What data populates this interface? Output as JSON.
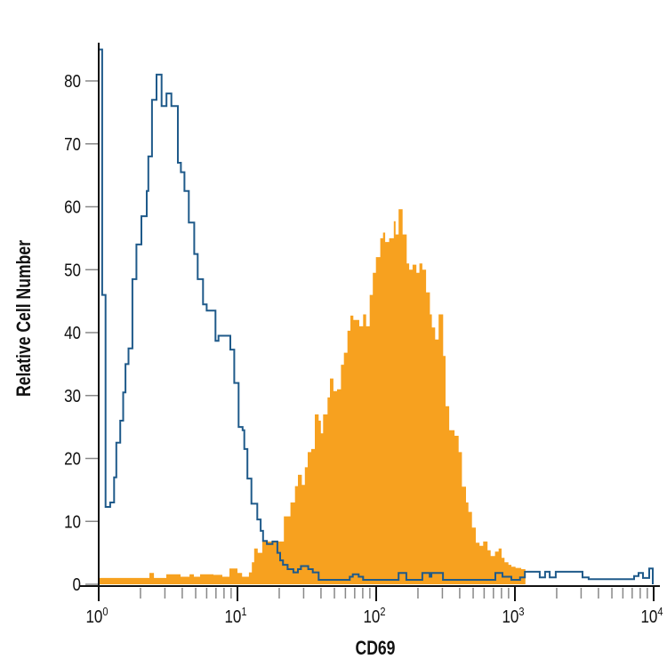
{
  "chart_data": {
    "type": "bar",
    "xlabel": "CD69",
    "ylabel": "Relative Cell Number",
    "x_scale": "log",
    "xlim": [
      1,
      10000
    ],
    "ylim": [
      0,
      85
    ],
    "grid": false,
    "y_ticks": [
      "0",
      "10",
      "20",
      "30",
      "40",
      "50",
      "60",
      "70",
      "80"
    ],
    "x_ticks": [
      {
        "base": "10",
        "exp": "0"
      },
      {
        "base": "10",
        "exp": "1"
      },
      {
        "base": "10",
        "exp": "2"
      },
      {
        "base": "10",
        "exp": "3"
      },
      {
        "base": "10",
        "exp": "4"
      }
    ],
    "series": [
      {
        "style": "filled",
        "color": "#F7A11F",
        "bin_left_edges": [
          1.0,
          2.32,
          2.5,
          3.07,
          3.89,
          4.51,
          4.85,
          5.38,
          6.71,
          7.78,
          8.75,
          10.0,
          10.8,
          12.1,
          12.7,
          13.2,
          14.0,
          15.1,
          21.6,
          24.1,
          26.0,
          27.3,
          29.1,
          30.6,
          32.1,
          34.0,
          36.1,
          38.5,
          39.9,
          41.4,
          44.6,
          46.4,
          49.2,
          52.2,
          55.7,
          58.5,
          62.1,
          65.2,
          68.4,
          75.5,
          80.5,
          84.7,
          89.8,
          94.6,
          99.5,
          107,
          112,
          116,
          124,
          134,
          138,
          145,
          155,
          166,
          173,
          183,
          195,
          205,
          215,
          229,
          244,
          252,
          266,
          282,
          304,
          316,
          336,
          367,
          393,
          415,
          444,
          462,
          490,
          522,
          556,
          590,
          635,
          668,
          719,
          763,
          801,
          841,
          898,
          943,
          1010,
          1110
        ],
        "values": [
          1.0,
          1.8,
          1.0,
          1.6,
          1.2,
          1.6,
          1.2,
          1.6,
          1.5,
          1.2,
          2.5,
          1.8,
          1.2,
          1.9,
          3.5,
          5.7,
          5.0,
          6.8,
          10.8,
          13,
          15.6,
          17.4,
          15.8,
          18.6,
          21,
          21.5,
          27,
          26,
          24,
          27,
          29.7,
          32.7,
          30.7,
          31,
          34.9,
          36.8,
          40.3,
          42.7,
          42,
          41,
          42.9,
          41,
          46,
          49.5,
          52,
          55,
          55.9,
          54.4,
          55,
          57.7,
          55.6,
          59.6,
          55.6,
          51,
          50,
          50.8,
          49.5,
          51,
          50,
          46.4,
          42.9,
          40.8,
          38.9,
          42.9,
          36.3,
          28.3,
          24.5,
          23.6,
          21,
          15.5,
          13,
          11.5,
          9,
          6.6,
          6.1,
          6.8,
          5.4,
          4.5,
          5.2,
          5.7,
          4.2,
          3.5,
          3.1,
          2.8,
          2.6,
          2.4
        ],
        "x_end": 1190
      },
      {
        "style": "outline",
        "color": "#1F5A8A",
        "bin_left_edges": [
          1.0,
          1.06,
          1.12,
          1.21,
          1.29,
          1.34,
          1.43,
          1.5,
          1.56,
          1.64,
          1.75,
          1.87,
          2.03,
          2.22,
          2.28,
          2.42,
          2.61,
          2.84,
          3.08,
          3.34,
          3.72,
          3.91,
          4.15,
          4.46,
          4.88,
          5.17,
          5.65,
          6.0,
          6.95,
          7.3,
          8.89,
          9.48,
          10.2,
          10.9,
          11.2,
          11.8,
          12.6,
          13.9,
          14.7,
          15.3,
          16.3,
          17.9,
          19.4,
          20.3,
          21.3,
          23.0,
          25.3,
          27.3,
          28.7,
          32.4,
          34.9,
          38.5,
          64.5,
          67.8,
          74.8,
          80.5,
          145,
          165,
          215,
          243,
          250,
          303,
          723,
          813,
          943,
          1090,
          1180,
          1510,
          1650,
          1780,
          1970,
          3070,
          3400,
          7230,
          7780,
          8380,
          9290
        ],
        "values": [
          85,
          46,
          12.3,
          13,
          17,
          22.5,
          26,
          30.5,
          35,
          37.5,
          48.5,
          54,
          58.5,
          62.5,
          68,
          77,
          81,
          76,
          78,
          76,
          67,
          65.5,
          62.5,
          57.5,
          52.5,
          48.5,
          44.5,
          43.5,
          38.7,
          39.5,
          37.3,
          32,
          25,
          24.5,
          21.5,
          16.8,
          12.8,
          10.3,
          8.5,
          6.9,
          6.4,
          6.8,
          5,
          3.8,
          3.1,
          2.4,
          1.9,
          2.4,
          2.9,
          2.4,
          1.9,
          0.7,
          1.2,
          1.6,
          1.2,
          0.7,
          1.8,
          0.7,
          1.8,
          1.2,
          1.8,
          0.7,
          1.8,
          1.2,
          0.7,
          1.1,
          2.0,
          1.1,
          2.0,
          1.1,
          2.0,
          1.1,
          0.8,
          1.3,
          1.8,
          1.0,
          2.5
        ],
        "x_end": 9860
      }
    ]
  }
}
